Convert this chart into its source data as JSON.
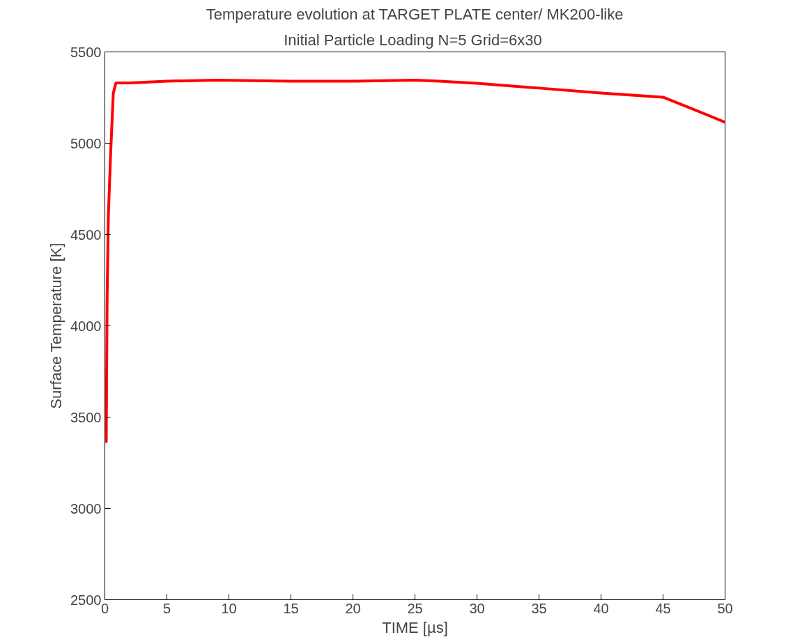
{
  "chart_data": {
    "type": "line",
    "title": "Temperature evolution at TARGET PLATE center/ MK200-like",
    "subtitle": "Initial Particle Loading N=5  Grid=6x30",
    "xlabel": "TIME [µs]",
    "ylabel": "Surface Temperature [K]",
    "x": [
      0.11,
      0.18,
      0.28,
      0.45,
      0.68,
      0.89,
      2,
      5,
      9,
      15,
      20,
      25,
      27,
      30,
      35,
      40,
      45,
      47,
      50
    ],
    "series": [
      {
        "color": "#ff0000",
        "values": [
          3360,
          4140,
          4600,
          4920,
          5275,
          5330,
          5330,
          5340,
          5345,
          5340,
          5340,
          5345,
          5340,
          5328,
          5302,
          5275,
          5252,
          5198,
          5115
        ]
      }
    ],
    "xlim": [
      0,
      50
    ],
    "xticks": [
      0,
      5,
      10,
      15,
      20,
      25,
      30,
      35,
      40,
      45,
      50
    ],
    "ylim": [
      2500,
      5500
    ],
    "yticks": [
      2500,
      3000,
      3500,
      4000,
      4500,
      5000,
      5500
    ],
    "grid": false,
    "marker": "none",
    "line_style": "solid"
  }
}
